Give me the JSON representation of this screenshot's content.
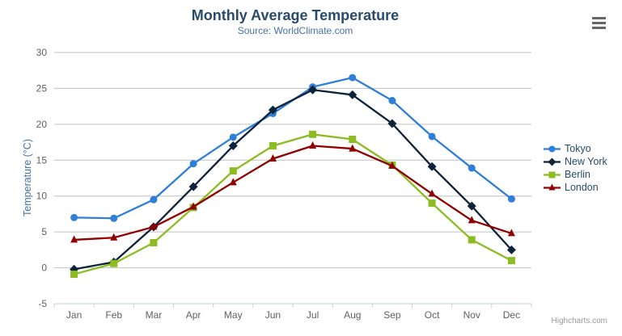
{
  "header": {
    "title": "Monthly Average Temperature",
    "subtitle": "Source: WorldClimate.com"
  },
  "toolbar": {
    "export_menu_icon": "hamburger-icon"
  },
  "credits": {
    "text": "Highcharts.com"
  },
  "colors": {
    "title": "#274b6d",
    "subtitle": "#4572a7",
    "axis_labels": "#606060",
    "y_axis_title": "#4572a7",
    "grid_line": "#c0c0c0",
    "axis_line": "#c0d0e0",
    "legend_text": "#274b6d",
    "credits_text": "#999999",
    "menu_icon": "#666666"
  },
  "chart_data": {
    "type": "line",
    "title": "Monthly Average Temperature",
    "subtitle": "Source: WorldClimate.com",
    "categories": [
      "Jan",
      "Feb",
      "Mar",
      "Apr",
      "May",
      "Jun",
      "Jul",
      "Aug",
      "Sep",
      "Oct",
      "Nov",
      "Dec"
    ],
    "series": [
      {
        "name": "Tokyo",
        "color": "#2f7ed8",
        "marker": "circle",
        "values": [
          7.0,
          6.9,
          9.5,
          14.5,
          18.2,
          21.5,
          25.2,
          26.5,
          23.3,
          18.3,
          13.9,
          9.6
        ]
      },
      {
        "name": "New York",
        "color": "#0d233a",
        "marker": "diamond",
        "values": [
          -0.2,
          0.8,
          5.7,
          11.3,
          17.0,
          22.0,
          24.8,
          24.1,
          20.1,
          14.1,
          8.6,
          2.5
        ]
      },
      {
        "name": "Berlin",
        "color": "#8bbc21",
        "marker": "square",
        "values": [
          -0.9,
          0.6,
          3.5,
          8.4,
          13.5,
          17.0,
          18.6,
          17.9,
          14.3,
          9.0,
          3.9,
          1.0
        ]
      },
      {
        "name": "London",
        "color": "#910000",
        "marker": "triangle",
        "values": [
          3.9,
          4.2,
          5.7,
          8.5,
          11.9,
          15.2,
          17.0,
          16.6,
          14.2,
          10.3,
          6.6,
          4.8
        ]
      }
    ],
    "xlabel": "",
    "ylabel": "Temperature (°C)",
    "ylim": [
      -5,
      30
    ],
    "ytick_interval": 5,
    "grid": true,
    "legend_position": "right"
  }
}
